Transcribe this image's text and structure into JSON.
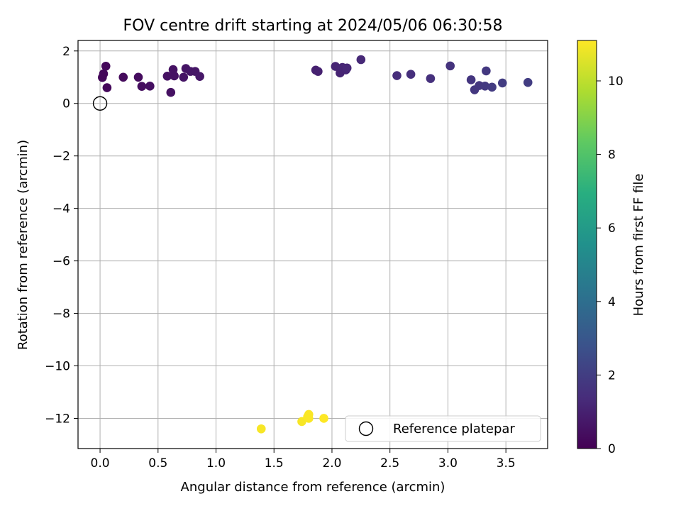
{
  "chart_data": {
    "type": "scatter",
    "title": "FOV centre drift starting at 2024/05/06 06:30:58",
    "xlabel": "Angular distance from reference (arcmin)",
    "ylabel": "Rotation from reference (arcmin)",
    "xlim": [
      -0.19,
      3.86
    ],
    "ylim": [
      -13.15,
      2.4
    ],
    "xticks": [
      0.0,
      0.5,
      1.0,
      1.5,
      2.0,
      2.5,
      3.0,
      3.5
    ],
    "xtick_labels": [
      "0.0",
      "0.5",
      "1.0",
      "1.5",
      "2.0",
      "2.5",
      "3.0",
      "3.5"
    ],
    "yticks": [
      2,
      0,
      -2,
      -4,
      -6,
      -8,
      -10,
      -12
    ],
    "ytick_labels": [
      "2",
      "0",
      "−2",
      "−4",
      "−6",
      "−8",
      "−10",
      "−12"
    ],
    "grid": true,
    "colormap": "viridis",
    "colorbar": {
      "label": "Hours from first FF file",
      "range": [
        0,
        11.1
      ],
      "ticks": [
        0,
        2,
        4,
        6,
        8,
        10
      ],
      "tick_labels": [
        "0",
        "2",
        "4",
        "6",
        "8",
        "10"
      ]
    },
    "series": [
      {
        "name": "Reference platepar",
        "marker": "open-circle",
        "points": [
          {
            "x": 0.0,
            "y": 0.0
          }
        ]
      },
      {
        "marker": "filled-circle",
        "color_value": "hours",
        "points": [
          {
            "x": 0.02,
            "y": 0.99,
            "c": 0.2
          },
          {
            "x": 0.03,
            "y": 1.13,
            "c": 0.2
          },
          {
            "x": 0.05,
            "y": 1.42,
            "c": 0.2
          },
          {
            "x": 0.06,
            "y": 0.6,
            "c": 0.2
          },
          {
            "x": 0.2,
            "y": 1.0,
            "c": 0.3
          },
          {
            "x": 0.33,
            "y": 1.0,
            "c": 0.35
          },
          {
            "x": 0.36,
            "y": 0.65,
            "c": 0.4
          },
          {
            "x": 0.43,
            "y": 0.66,
            "c": 0.45
          },
          {
            "x": 0.58,
            "y": 1.04,
            "c": 0.5
          },
          {
            "x": 0.61,
            "y": 0.42,
            "c": 0.5
          },
          {
            "x": 0.63,
            "y": 1.29,
            "c": 0.55
          },
          {
            "x": 0.64,
            "y": 1.05,
            "c": 0.55
          },
          {
            "x": 0.72,
            "y": 1.0,
            "c": 0.6
          },
          {
            "x": 0.74,
            "y": 1.33,
            "c": 0.6
          },
          {
            "x": 0.78,
            "y": 1.22,
            "c": 0.65
          },
          {
            "x": 0.82,
            "y": 1.22,
            "c": 0.65
          },
          {
            "x": 0.86,
            "y": 1.03,
            "c": 0.7
          },
          {
            "x": 1.86,
            "y": 1.27,
            "c": 1.0
          },
          {
            "x": 1.88,
            "y": 1.22,
            "c": 1.0
          },
          {
            "x": 2.03,
            "y": 1.41,
            "c": 1.1
          },
          {
            "x": 2.07,
            "y": 1.16,
            "c": 1.1
          },
          {
            "x": 2.09,
            "y": 1.37,
            "c": 1.15
          },
          {
            "x": 2.12,
            "y": 1.28,
            "c": 1.15
          },
          {
            "x": 2.13,
            "y": 1.35,
            "c": 1.2
          },
          {
            "x": 2.25,
            "y": 1.67,
            "c": 1.25
          },
          {
            "x": 2.56,
            "y": 1.06,
            "c": 1.4
          },
          {
            "x": 2.68,
            "y": 1.11,
            "c": 1.45
          },
          {
            "x": 2.85,
            "y": 0.95,
            "c": 1.55
          },
          {
            "x": 3.02,
            "y": 1.43,
            "c": 1.6
          },
          {
            "x": 3.2,
            "y": 0.9,
            "c": 1.7
          },
          {
            "x": 3.23,
            "y": 0.52,
            "c": 1.75
          },
          {
            "x": 3.27,
            "y": 0.68,
            "c": 1.75
          },
          {
            "x": 3.32,
            "y": 0.66,
            "c": 1.85
          },
          {
            "x": 3.33,
            "y": 1.24,
            "c": 1.8
          },
          {
            "x": 3.38,
            "y": 0.62,
            "c": 1.9
          },
          {
            "x": 3.47,
            "y": 0.78,
            "c": 1.95
          },
          {
            "x": 3.69,
            "y": 0.8,
            "c": 2.0
          },
          {
            "x": 1.39,
            "y": -12.4,
            "c": 11.0
          },
          {
            "x": 1.74,
            "y": -12.12,
            "c": 11.0
          },
          {
            "x": 1.79,
            "y": -11.94,
            "c": 11.05
          },
          {
            "x": 1.8,
            "y": -11.85,
            "c": 11.05
          },
          {
            "x": 1.8,
            "y": -12.0,
            "c": 11.05
          },
          {
            "x": 1.93,
            "y": -12.0,
            "c": 11.1
          }
        ]
      }
    ],
    "legend": {
      "placement": "lower-right",
      "entries": [
        "Reference platepar"
      ]
    }
  }
}
